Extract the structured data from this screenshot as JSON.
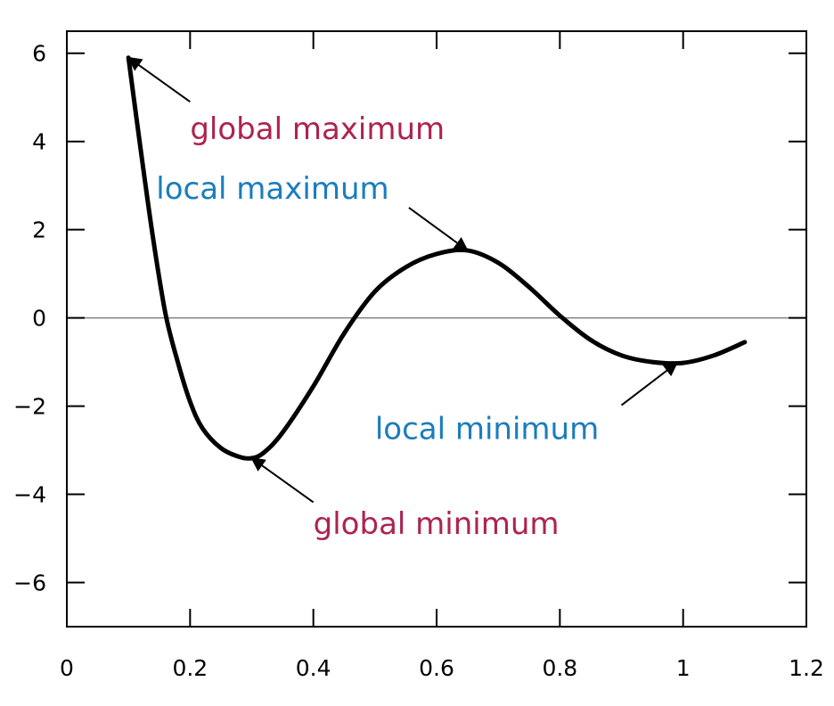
{
  "chart_data": {
    "type": "line",
    "title": "",
    "xlabel": "",
    "ylabel": "",
    "xlim": [
      0,
      1.2
    ],
    "ylim": [
      -7,
      6.5
    ],
    "x_ticks": [
      "0",
      "0.2",
      "0.4",
      "0.6",
      "0.8",
      "1",
      "1.2"
    ],
    "x_tick_values": [
      0,
      0.2,
      0.4,
      0.6,
      0.8,
      1.0,
      1.2
    ],
    "y_ticks": [
      "6",
      "4",
      "2",
      "0",
      "−2",
      "−4",
      "−6"
    ],
    "y_tick_values": [
      6,
      4,
      2,
      0,
      -2,
      -4,
      -6
    ],
    "grid": false,
    "zero_line": true,
    "series": [
      {
        "color": "#000000",
        "x": [
          0.1,
          0.12,
          0.14,
          0.16,
          0.18,
          0.2,
          0.22,
          0.25,
          0.28,
          0.3,
          0.32,
          0.35,
          0.4,
          0.45,
          0.5,
          0.55,
          0.6,
          0.65,
          0.7,
          0.75,
          0.8,
          0.85,
          0.9,
          0.95,
          1.0,
          1.05,
          1.1
        ],
        "y": [
          5.9,
          3.8,
          1.8,
          0.1,
          -1.0,
          -1.9,
          -2.5,
          -2.95,
          -3.15,
          -3.18,
          -3.05,
          -2.6,
          -1.55,
          -0.35,
          0.6,
          1.15,
          1.45,
          1.53,
          1.25,
          0.7,
          0.05,
          -0.5,
          -0.85,
          -1.0,
          -1.02,
          -0.85,
          -0.55
        ]
      }
    ],
    "annotations": [
      {
        "key": "global-maximum",
        "text": "global maximum",
        "color": "#ad2350",
        "point": [
          0.1,
          5.9
        ],
        "text_pos": [
          0.2,
          4.05
        ],
        "tail": [
          0.2,
          4.9
        ]
      },
      {
        "key": "local-maximum",
        "text": "local maximum",
        "color": "#1a7dbd",
        "point": [
          0.65,
          1.53
        ],
        "text_pos": [
          0.145,
          2.7
        ],
        "tail": [
          0.555,
          2.5
        ]
      },
      {
        "key": "local-minimum",
        "text": "local minimum",
        "color": "#1a7dbd",
        "point": [
          0.99,
          -1.02
        ],
        "text_pos": [
          0.5,
          -2.75
        ],
        "tail": [
          0.9,
          -1.98
        ]
      },
      {
        "key": "global-minimum",
        "text": "global minimum",
        "color": "#ad2350",
        "point": [
          0.3,
          -3.18
        ],
        "text_pos": [
          0.4,
          -4.9
        ],
        "tail": [
          0.4,
          -4.18
        ]
      }
    ]
  }
}
